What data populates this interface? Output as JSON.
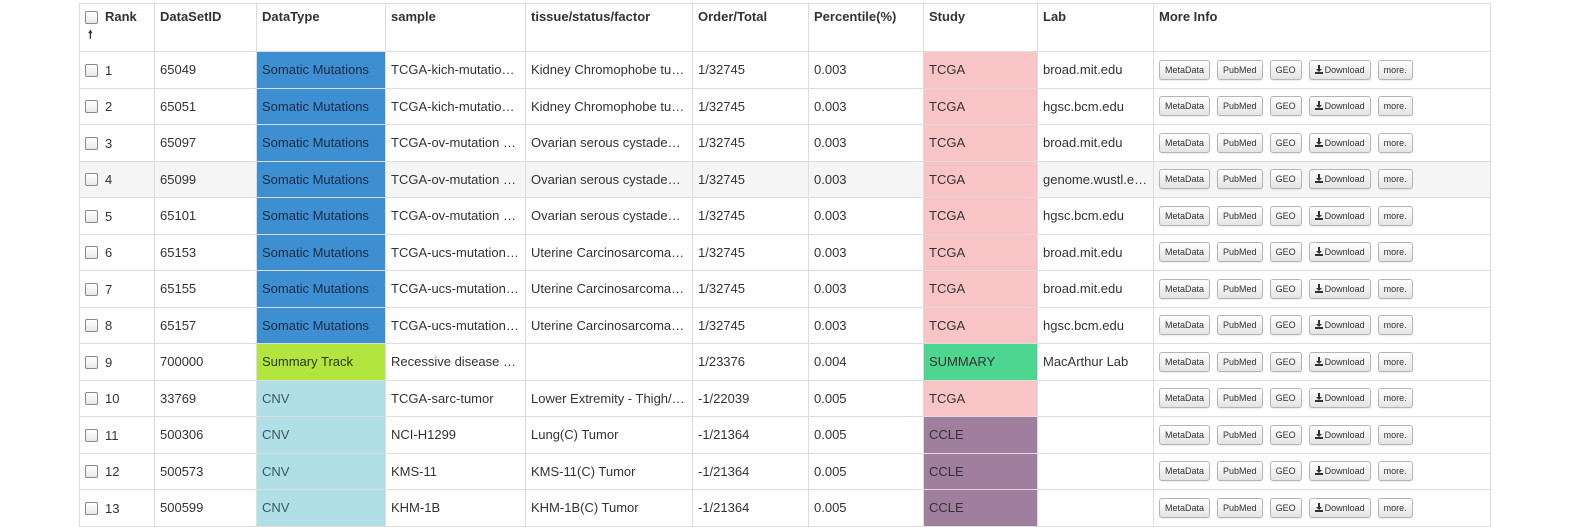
{
  "table": {
    "headers": {
      "rank": "Rank",
      "sort_arrow": "🠕",
      "dataset_id": "DataSetID",
      "data_type": "DataType",
      "sample": "sample",
      "tissue": "tissue/status/factor",
      "order_total": "Order/Total",
      "percentile": "Percentile(%)",
      "study": "Study",
      "lab": "Lab",
      "more_info": "More Info"
    },
    "buttons": {
      "metadata": "MetaData",
      "pubmed": "PubMed",
      "geo": "GEO",
      "download": "Download",
      "more": "more."
    },
    "rows": [
      {
        "rank": "1",
        "id": "65049",
        "type": "Somatic Mutations",
        "type_class": "somatic",
        "sample": "TCGA-kich-mutation…",
        "tissue": "Kidney Chromophobe tu…",
        "order": "1/32745",
        "pct": "0.003",
        "study": "TCGA",
        "study_class": "tcga",
        "lab": "broad.mit.edu"
      },
      {
        "rank": "2",
        "id": "65051",
        "type": "Somatic Mutations",
        "type_class": "somatic",
        "sample": "TCGA-kich-mutation…",
        "tissue": "Kidney Chromophobe tu…",
        "order": "1/32745",
        "pct": "0.003",
        "study": "TCGA",
        "study_class": "tcga",
        "lab": "hgsc.bcm.edu"
      },
      {
        "rank": "3",
        "id": "65097",
        "type": "Somatic Mutations",
        "type_class": "somatic",
        "sample": "TCGA-ov-mutation p…",
        "tissue": "Ovarian serous cystaden…",
        "order": "1/32745",
        "pct": "0.003",
        "study": "TCGA",
        "study_class": "tcga",
        "lab": "broad.mit.edu"
      },
      {
        "rank": "4",
        "id": "65099",
        "type": "Somatic Mutations",
        "type_class": "somatic",
        "sample": "TCGA-ov-mutation p…",
        "tissue": "Ovarian serous cystaden…",
        "order": "1/32745",
        "pct": "0.003",
        "study": "TCGA",
        "study_class": "tcga",
        "lab": "genome.wustl.edu"
      },
      {
        "rank": "5",
        "id": "65101",
        "type": "Somatic Mutations",
        "type_class": "somatic",
        "sample": "TCGA-ov-mutation p…",
        "tissue": "Ovarian serous cystaden…",
        "order": "1/32745",
        "pct": "0.003",
        "study": "TCGA",
        "study_class": "tcga",
        "lab": "hgsc.bcm.edu"
      },
      {
        "rank": "6",
        "id": "65153",
        "type": "Somatic Mutations",
        "type_class": "somatic",
        "sample": "TCGA-ucs-mutation …",
        "tissue": "Uterine Carcinosarcoma …",
        "order": "1/32745",
        "pct": "0.003",
        "study": "TCGA",
        "study_class": "tcga",
        "lab": "broad.mit.edu"
      },
      {
        "rank": "7",
        "id": "65155",
        "type": "Somatic Mutations",
        "type_class": "somatic",
        "sample": "TCGA-ucs-mutation …",
        "tissue": "Uterine Carcinosarcoma …",
        "order": "1/32745",
        "pct": "0.003",
        "study": "TCGA",
        "study_class": "tcga",
        "lab": "broad.mit.edu"
      },
      {
        "rank": "8",
        "id": "65157",
        "type": "Somatic Mutations",
        "type_class": "somatic",
        "sample": "TCGA-ucs-mutation …",
        "tissue": "Uterine Carcinosarcoma …",
        "order": "1/32745",
        "pct": "0.003",
        "study": "TCGA",
        "study_class": "tcga",
        "lab": "hgsc.bcm.edu"
      },
      {
        "rank": "9",
        "id": "700000",
        "type": "Summary Track",
        "type_class": "summary",
        "sample": "Recessive disease p…",
        "tissue": "",
        "order": "1/23376",
        "pct": "0.004",
        "study": "SUMMARY",
        "study_class": "summary",
        "lab": "MacArthur Lab"
      },
      {
        "rank": "10",
        "id": "33769",
        "type": "CNV",
        "type_class": "cnv",
        "sample": "TCGA-sarc-tumor",
        "tissue": "Lower Extremity - Thigh/…",
        "order": "-1/22039",
        "pct": "0.005",
        "study": "TCGA",
        "study_class": "tcga",
        "lab": ""
      },
      {
        "rank": "11",
        "id": "500306",
        "type": "CNV",
        "type_class": "cnv",
        "sample": "NCI-H1299",
        "tissue": "Lung(C) Tumor",
        "order": "-1/21364",
        "pct": "0.005",
        "study": "CCLE",
        "study_class": "ccle",
        "lab": ""
      },
      {
        "rank": "12",
        "id": "500573",
        "type": "CNV",
        "type_class": "cnv",
        "sample": "KMS-11",
        "tissue": "KMS-11(C) Tumor",
        "order": "-1/21364",
        "pct": "0.005",
        "study": "CCLE",
        "study_class": "ccle",
        "lab": ""
      },
      {
        "rank": "13",
        "id": "500599",
        "type": "CNV",
        "type_class": "cnv",
        "sample": "KHM-1B",
        "tissue": "KHM-1B(C) Tumor",
        "order": "-1/21364",
        "pct": "0.005",
        "study": "CCLE",
        "study_class": "ccle",
        "lab": ""
      }
    ],
    "striped_row_index": 3,
    "colors": {
      "somatic": "#3d8fd1",
      "summary_track": "#b2e63f",
      "cnv": "#b0e0e6",
      "tcga": "#f9c4c6",
      "summary_study": "#4cd68f",
      "ccle": "#a07e9e"
    },
    "icons": {
      "download": "download-icon",
      "sort": "sort-up-arrow-icon"
    }
  }
}
